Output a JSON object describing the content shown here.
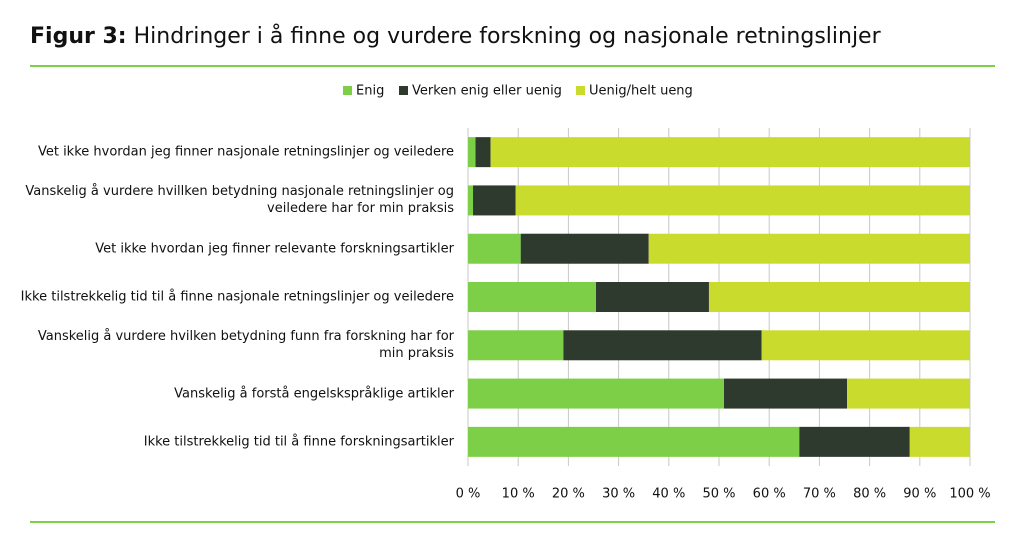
{
  "chart_data": {
    "type": "stacked-barh",
    "title_label": "Figur 3:",
    "title": "Hindringer i å finne og vurdere forskning og nasjonale retningslinjer",
    "categories": [
      "Vet ikke hvordan jeg finner nasjonale retningslinjer og veiledere",
      "Vanskelig å vurdere hvillken betydning nasjonale retningslinjer og veiledere har for min praksis",
      "Vet ikke hvordan jeg finner relevante forskningsartikler",
      "Ikke tilstrekkelig tid til å finne nasjonale retningslinjer og veiledere",
      "Vanskelig å vurdere hvilken betydning funn fra forskning har for min praksis",
      "Vanskelig å forstå engelskspråklige artikler",
      "Ikke tilstrekkelig tid til å finne forskningsartikler"
    ],
    "series": [
      {
        "name": "Enig",
        "color": "#7ccf46",
        "values": [
          1.5,
          1,
          10.5,
          25.5,
          19,
          51,
          66
        ]
      },
      {
        "name": "Verken enig eller uenig",
        "color": "#2e3a2e",
        "values": [
          3,
          8.5,
          25.5,
          22.5,
          39.5,
          24.5,
          22
        ]
      },
      {
        "name": "Uenig/helt ueng",
        "color": "#c9dc2e",
        "values": [
          95.5,
          90.5,
          64,
          52,
          41.5,
          24.5,
          12
        ]
      }
    ],
    "xlim": [
      0,
      100
    ],
    "xticks": [
      {
        "value": 0,
        "label": "0 %"
      },
      {
        "value": 10,
        "label": "10 %"
      },
      {
        "value": 20,
        "label": "20 %"
      },
      {
        "value": 30,
        "label": "30 %"
      },
      {
        "value": 40,
        "label": "40 %"
      },
      {
        "value": 50,
        "label": "50 %"
      },
      {
        "value": 60,
        "label": "60 %"
      },
      {
        "value": 70,
        "label": "70 %"
      },
      {
        "value": 80,
        "label": "80 %"
      },
      {
        "value": 90,
        "label": "90 %"
      },
      {
        "value": 100,
        "label": "100 %"
      }
    ],
    "grid": true
  }
}
